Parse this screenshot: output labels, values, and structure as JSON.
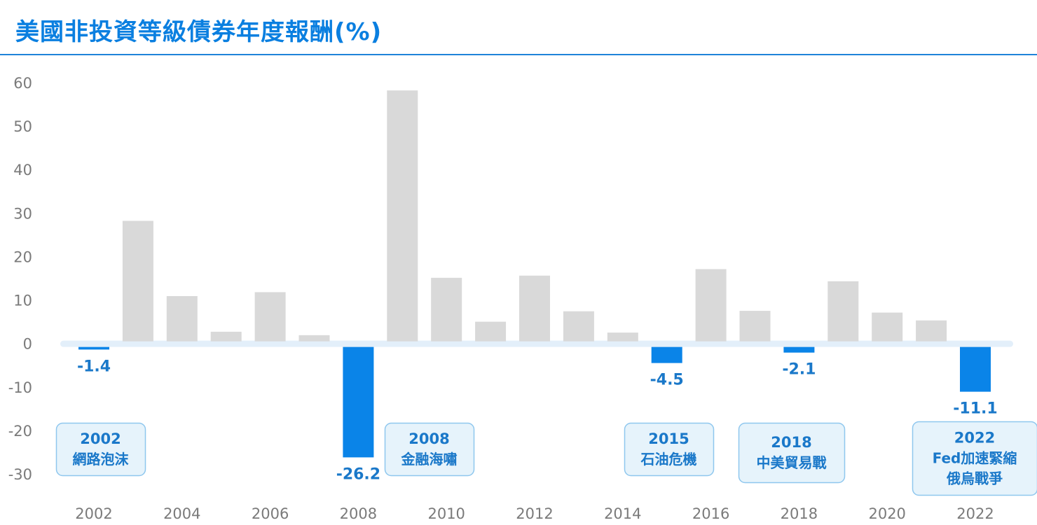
{
  "title": "美國非投資等級債券年度報酬(%)",
  "colors": {
    "accent": "#0a7fe0",
    "positive_bar": "#d9d9d9",
    "negative_bar": "#0a84e8",
    "zero_band": "#e3effa",
    "event_box_bg": "#e6f3fb",
    "event_box_border": "#8fc7ee"
  },
  "chart_data": {
    "type": "bar",
    "title": "美國非投資等級債券年度報酬(%)",
    "xlabel": "",
    "ylabel": "",
    "ylim": [
      -30,
      60
    ],
    "yticks": [
      60,
      50,
      40,
      30,
      20,
      10,
      0,
      -10,
      -20,
      -30
    ],
    "xtick_labels": [
      "2002",
      "2004",
      "2006",
      "2008",
      "2010",
      "2012",
      "2014",
      "2016",
      "2018",
      "2020",
      "2022"
    ],
    "categories": [
      "2002",
      "2003",
      "2004",
      "2005",
      "2006",
      "2007",
      "2008",
      "2009",
      "2010",
      "2011",
      "2012",
      "2013",
      "2014",
      "2015",
      "2016",
      "2017",
      "2018",
      "2019",
      "2020",
      "2021",
      "2022"
    ],
    "values": [
      -1.4,
      28.2,
      10.9,
      2.7,
      11.8,
      1.9,
      -26.2,
      58.2,
      15.1,
      5.0,
      15.6,
      7.4,
      2.5,
      -4.5,
      17.1,
      7.5,
      -2.1,
      14.3,
      7.1,
      5.3,
      -11.1
    ],
    "data_labels": [
      {
        "year": "2002",
        "text": "-1.4"
      },
      {
        "year": "2008",
        "text": "-26.2"
      },
      {
        "year": "2015",
        "text": "-4.5"
      },
      {
        "year": "2018",
        "text": "-2.1"
      },
      {
        "year": "2022",
        "text": "-11.1"
      }
    ],
    "grid": false,
    "legend": "none"
  },
  "events": [
    {
      "id": "2002",
      "year_label": "2002",
      "lines": [
        "網路泡沫"
      ]
    },
    {
      "id": "2008",
      "year_label": "2008",
      "lines": [
        "金融海嘯"
      ]
    },
    {
      "id": "2015",
      "year_label": "2015",
      "lines": [
        "石油危機"
      ]
    },
    {
      "id": "2018",
      "year_label": "2018",
      "lines": [
        "中美貿易戰"
      ]
    },
    {
      "id": "2022",
      "year_label": "2022",
      "lines": [
        "Fed加速緊縮",
        "俄烏戰爭"
      ]
    }
  ]
}
